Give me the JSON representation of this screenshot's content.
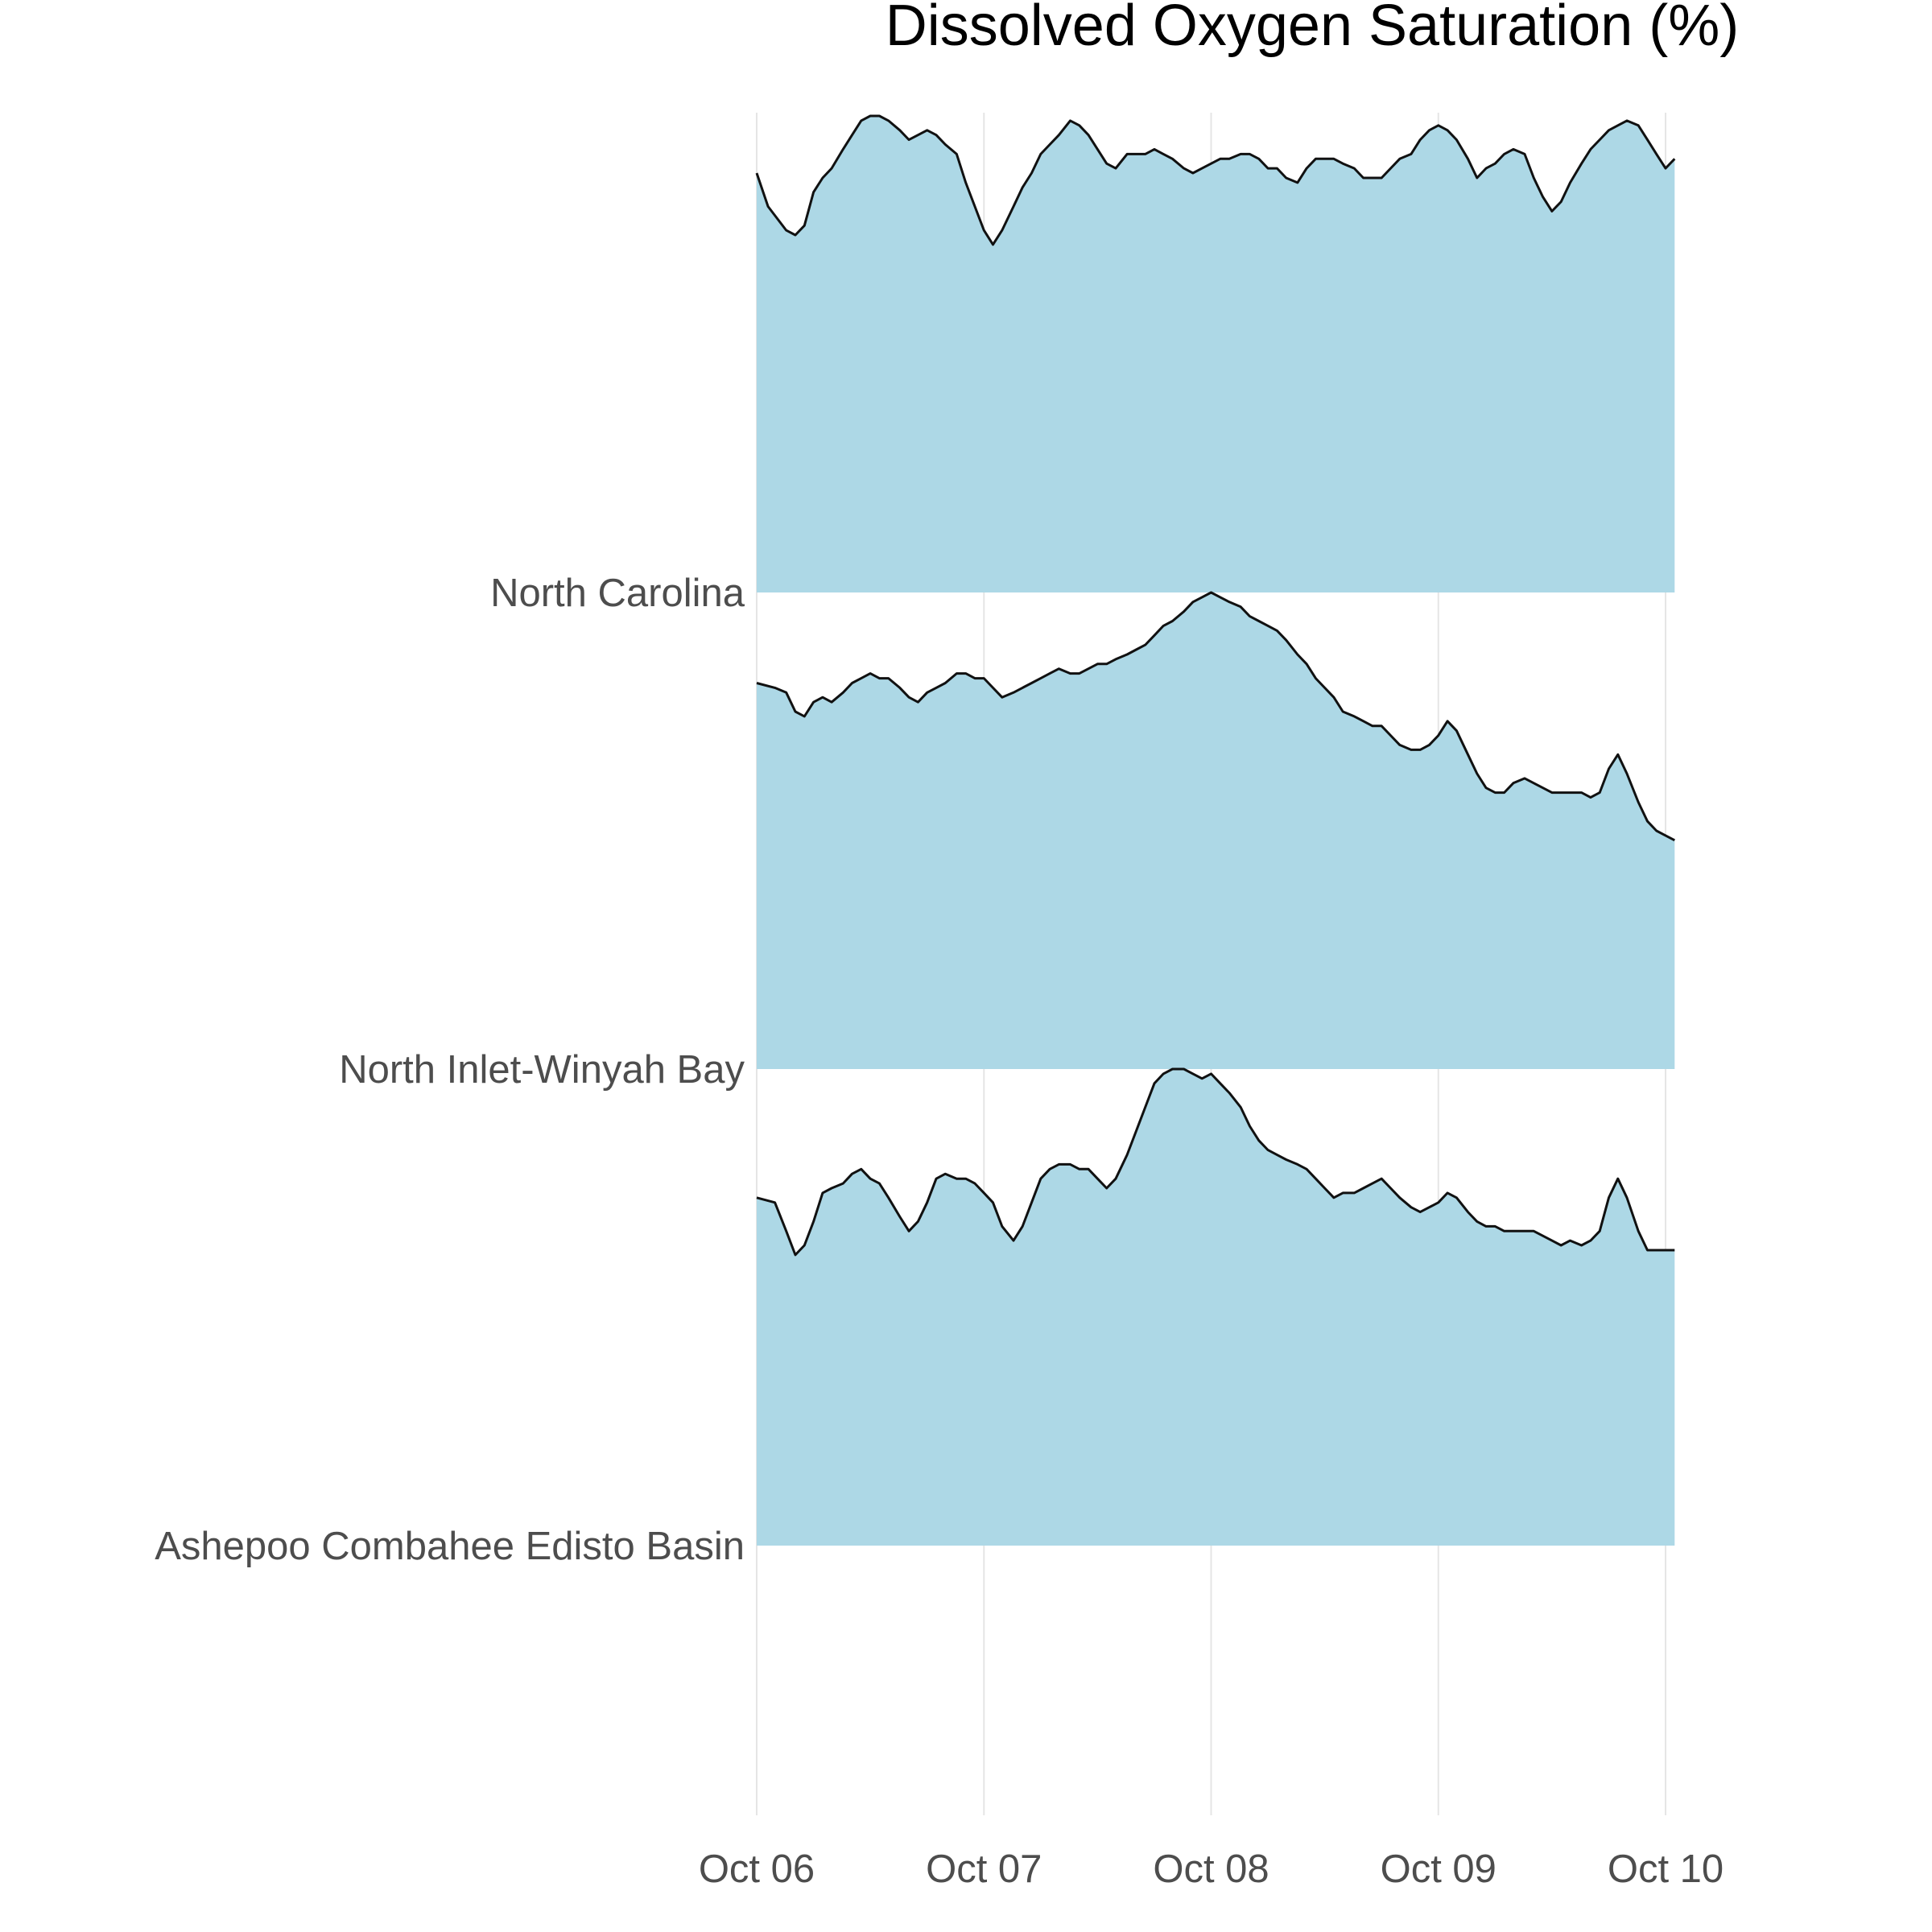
{
  "chart_data": {
    "type": "area",
    "subtype": "ridgeline",
    "title": "Dissolved Oxygen Saturation (%)",
    "xlabel": "",
    "ylabel": "",
    "x_ticks": [
      "Oct 06",
      "Oct 07",
      "Oct 08",
      "Oct 09",
      "Oct 10"
    ],
    "x_tick_days": [
      0,
      1,
      2,
      3,
      4
    ],
    "x_range_days": [
      0,
      4.96
    ],
    "grid": {
      "vertical": true,
      "horizontal": false
    },
    "legend": "none",
    "colors": {
      "fill": "#add8e6",
      "line": "#111111",
      "grid": "#e5e5e5",
      "text": "#4d4d4d"
    },
    "series": [
      {
        "name": "North Carolina",
        "values": [
          [
            0.0,
            0.88
          ],
          [
            0.05,
            0.81
          ],
          [
            0.13,
            0.76
          ],
          [
            0.17,
            0.75
          ],
          [
            0.21,
            0.77
          ],
          [
            0.25,
            0.84
          ],
          [
            0.29,
            0.87
          ],
          [
            0.33,
            0.89
          ],
          [
            0.38,
            0.93
          ],
          [
            0.42,
            0.96
          ],
          [
            0.46,
            0.99
          ],
          [
            0.5,
            1.0
          ],
          [
            0.54,
            1.0
          ],
          [
            0.58,
            0.99
          ],
          [
            0.63,
            0.97
          ],
          [
            0.67,
            0.95
          ],
          [
            0.71,
            0.96
          ],
          [
            0.75,
            0.97
          ],
          [
            0.79,
            0.96
          ],
          [
            0.83,
            0.94
          ],
          [
            0.88,
            0.92
          ],
          [
            0.92,
            0.86
          ],
          [
            0.96,
            0.81
          ],
          [
            1.0,
            0.76
          ],
          [
            1.04,
            0.73
          ],
          [
            1.08,
            0.76
          ],
          [
            1.13,
            0.81
          ],
          [
            1.17,
            0.85
          ],
          [
            1.21,
            0.88
          ],
          [
            1.25,
            0.92
          ],
          [
            1.29,
            0.94
          ],
          [
            1.33,
            0.96
          ],
          [
            1.38,
            0.99
          ],
          [
            1.42,
            0.98
          ],
          [
            1.46,
            0.96
          ],
          [
            1.5,
            0.93
          ],
          [
            1.54,
            0.9
          ],
          [
            1.58,
            0.89
          ],
          [
            1.63,
            0.92
          ],
          [
            1.67,
            0.92
          ],
          [
            1.71,
            0.92
          ],
          [
            1.75,
            0.93
          ],
          [
            1.79,
            0.92
          ],
          [
            1.83,
            0.91
          ],
          [
            1.88,
            0.89
          ],
          [
            1.92,
            0.88
          ],
          [
            1.96,
            0.89
          ],
          [
            2.0,
            0.9
          ],
          [
            2.04,
            0.91
          ],
          [
            2.08,
            0.91
          ],
          [
            2.13,
            0.92
          ],
          [
            2.17,
            0.92
          ],
          [
            2.21,
            0.91
          ],
          [
            2.25,
            0.89
          ],
          [
            2.29,
            0.89
          ],
          [
            2.33,
            0.87
          ],
          [
            2.38,
            0.86
          ],
          [
            2.42,
            0.89
          ],
          [
            2.46,
            0.91
          ],
          [
            2.5,
            0.91
          ],
          [
            2.54,
            0.91
          ],
          [
            2.58,
            0.9
          ],
          [
            2.63,
            0.89
          ],
          [
            2.67,
            0.87
          ],
          [
            2.71,
            0.87
          ],
          [
            2.75,
            0.87
          ],
          [
            2.79,
            0.89
          ],
          [
            2.83,
            0.91
          ],
          [
            2.88,
            0.92
          ],
          [
            2.92,
            0.95
          ],
          [
            2.96,
            0.97
          ],
          [
            3.0,
            0.98
          ],
          [
            3.04,
            0.97
          ],
          [
            3.08,
            0.95
          ],
          [
            3.13,
            0.91
          ],
          [
            3.17,
            0.87
          ],
          [
            3.21,
            0.89
          ],
          [
            3.25,
            0.9
          ],
          [
            3.29,
            0.92
          ],
          [
            3.33,
            0.93
          ],
          [
            3.38,
            0.92
          ],
          [
            3.42,
            0.87
          ],
          [
            3.46,
            0.83
          ],
          [
            3.5,
            0.8
          ],
          [
            3.54,
            0.82
          ],
          [
            3.58,
            0.86
          ],
          [
            3.63,
            0.9
          ],
          [
            3.67,
            0.93
          ],
          [
            3.71,
            0.95
          ],
          [
            3.75,
            0.97
          ],
          [
            3.79,
            0.98
          ],
          [
            3.83,
            0.99
          ],
          [
            3.88,
            0.98
          ],
          [
            3.92,
            0.95
          ],
          [
            3.96,
            0.92
          ],
          [
            4.0,
            0.89
          ],
          [
            4.04,
            0.91
          ]
        ]
      },
      {
        "name": "North Inlet-Winyah Bay",
        "values": [
          [
            0.0,
            0.81
          ],
          [
            0.08,
            0.8
          ],
          [
            0.13,
            0.79
          ],
          [
            0.17,
            0.75
          ],
          [
            0.21,
            0.74
          ],
          [
            0.25,
            0.77
          ],
          [
            0.29,
            0.78
          ],
          [
            0.33,
            0.77
          ],
          [
            0.38,
            0.79
          ],
          [
            0.42,
            0.81
          ],
          [
            0.46,
            0.82
          ],
          [
            0.5,
            0.83
          ],
          [
            0.54,
            0.82
          ],
          [
            0.58,
            0.82
          ],
          [
            0.63,
            0.8
          ],
          [
            0.67,
            0.78
          ],
          [
            0.71,
            0.77
          ],
          [
            0.75,
            0.79
          ],
          [
            0.79,
            0.8
          ],
          [
            0.83,
            0.81
          ],
          [
            0.88,
            0.83
          ],
          [
            0.92,
            0.83
          ],
          [
            0.96,
            0.82
          ],
          [
            1.0,
            0.82
          ],
          [
            1.04,
            0.8
          ],
          [
            1.08,
            0.78
          ],
          [
            1.13,
            0.79
          ],
          [
            1.17,
            0.8
          ],
          [
            1.21,
            0.81
          ],
          [
            1.25,
            0.82
          ],
          [
            1.29,
            0.83
          ],
          [
            1.33,
            0.84
          ],
          [
            1.38,
            0.83
          ],
          [
            1.42,
            0.83
          ],
          [
            1.46,
            0.84
          ],
          [
            1.5,
            0.85
          ],
          [
            1.54,
            0.85
          ],
          [
            1.58,
            0.86
          ],
          [
            1.63,
            0.87
          ],
          [
            1.67,
            0.88
          ],
          [
            1.71,
            0.89
          ],
          [
            1.75,
            0.91
          ],
          [
            1.79,
            0.93
          ],
          [
            1.83,
            0.94
          ],
          [
            1.88,
            0.96
          ],
          [
            1.92,
            0.98
          ],
          [
            1.96,
            0.99
          ],
          [
            2.0,
            1.0
          ],
          [
            2.04,
            0.99
          ],
          [
            2.08,
            0.98
          ],
          [
            2.13,
            0.97
          ],
          [
            2.17,
            0.95
          ],
          [
            2.21,
            0.94
          ],
          [
            2.25,
            0.93
          ],
          [
            2.29,
            0.92
          ],
          [
            2.33,
            0.9
          ],
          [
            2.38,
            0.87
          ],
          [
            2.42,
            0.85
          ],
          [
            2.46,
            0.82
          ],
          [
            2.5,
            0.8
          ],
          [
            2.54,
            0.78
          ],
          [
            2.58,
            0.75
          ],
          [
            2.63,
            0.74
          ],
          [
            2.67,
            0.73
          ],
          [
            2.71,
            0.72
          ],
          [
            2.75,
            0.72
          ],
          [
            2.79,
            0.7
          ],
          [
            2.83,
            0.68
          ],
          [
            2.88,
            0.67
          ],
          [
            2.92,
            0.67
          ],
          [
            2.96,
            0.68
          ],
          [
            3.0,
            0.7
          ],
          [
            3.04,
            0.73
          ],
          [
            3.08,
            0.71
          ],
          [
            3.13,
            0.66
          ],
          [
            3.17,
            0.62
          ],
          [
            3.21,
            0.59
          ],
          [
            3.25,
            0.58
          ],
          [
            3.29,
            0.58
          ],
          [
            3.33,
            0.6
          ],
          [
            3.38,
            0.61
          ],
          [
            3.42,
            0.6
          ],
          [
            3.46,
            0.59
          ],
          [
            3.5,
            0.58
          ],
          [
            3.54,
            0.58
          ],
          [
            3.58,
            0.58
          ],
          [
            3.63,
            0.58
          ],
          [
            3.67,
            0.57
          ],
          [
            3.71,
            0.58
          ],
          [
            3.75,
            0.63
          ],
          [
            3.79,
            0.66
          ],
          [
            3.83,
            0.62
          ],
          [
            3.88,
            0.56
          ],
          [
            3.92,
            0.52
          ],
          [
            3.96,
            0.5
          ],
          [
            4.0,
            0.49
          ],
          [
            4.04,
            0.48
          ]
        ]
      },
      {
        "name": "Ashepoo Combahee Edisto Basin",
        "values": [
          [
            0.0,
            0.73
          ],
          [
            0.08,
            0.72
          ],
          [
            0.13,
            0.66
          ],
          [
            0.17,
            0.61
          ],
          [
            0.21,
            0.63
          ],
          [
            0.25,
            0.68
          ],
          [
            0.29,
            0.74
          ],
          [
            0.33,
            0.75
          ],
          [
            0.38,
            0.76
          ],
          [
            0.42,
            0.78
          ],
          [
            0.46,
            0.79
          ],
          [
            0.5,
            0.77
          ],
          [
            0.54,
            0.76
          ],
          [
            0.58,
            0.73
          ],
          [
            0.63,
            0.69
          ],
          [
            0.67,
            0.66
          ],
          [
            0.71,
            0.68
          ],
          [
            0.75,
            0.72
          ],
          [
            0.79,
            0.77
          ],
          [
            0.83,
            0.78
          ],
          [
            0.88,
            0.77
          ],
          [
            0.92,
            0.77
          ],
          [
            0.96,
            0.76
          ],
          [
            1.0,
            0.74
          ],
          [
            1.04,
            0.72
          ],
          [
            1.08,
            0.67
          ],
          [
            1.13,
            0.64
          ],
          [
            1.17,
            0.67
          ],
          [
            1.21,
            0.72
          ],
          [
            1.25,
            0.77
          ],
          [
            1.29,
            0.79
          ],
          [
            1.33,
            0.8
          ],
          [
            1.38,
            0.8
          ],
          [
            1.42,
            0.79
          ],
          [
            1.46,
            0.79
          ],
          [
            1.5,
            0.77
          ],
          [
            1.54,
            0.75
          ],
          [
            1.58,
            0.77
          ],
          [
            1.63,
            0.82
          ],
          [
            1.67,
            0.87
          ],
          [
            1.71,
            0.92
          ],
          [
            1.75,
            0.97
          ],
          [
            1.79,
            0.99
          ],
          [
            1.83,
            1.0
          ],
          [
            1.88,
            1.0
          ],
          [
            1.92,
            0.99
          ],
          [
            1.96,
            0.98
          ],
          [
            2.0,
            0.99
          ],
          [
            2.04,
            0.97
          ],
          [
            2.08,
            0.95
          ],
          [
            2.13,
            0.92
          ],
          [
            2.17,
            0.88
          ],
          [
            2.21,
            0.85
          ],
          [
            2.25,
            0.83
          ],
          [
            2.29,
            0.82
          ],
          [
            2.33,
            0.81
          ],
          [
            2.38,
            0.8
          ],
          [
            2.42,
            0.79
          ],
          [
            2.46,
            0.77
          ],
          [
            2.5,
            0.75
          ],
          [
            2.54,
            0.73
          ],
          [
            2.58,
            0.74
          ],
          [
            2.63,
            0.74
          ],
          [
            2.67,
            0.75
          ],
          [
            2.71,
            0.76
          ],
          [
            2.75,
            0.77
          ],
          [
            2.79,
            0.75
          ],
          [
            2.83,
            0.73
          ],
          [
            2.88,
            0.71
          ],
          [
            2.92,
            0.7
          ],
          [
            2.96,
            0.71
          ],
          [
            3.0,
            0.72
          ],
          [
            3.04,
            0.74
          ],
          [
            3.08,
            0.73
          ],
          [
            3.13,
            0.7
          ],
          [
            3.17,
            0.68
          ],
          [
            3.21,
            0.67
          ],
          [
            3.25,
            0.67
          ],
          [
            3.29,
            0.66
          ],
          [
            3.33,
            0.66
          ],
          [
            3.38,
            0.66
          ],
          [
            3.42,
            0.66
          ],
          [
            3.46,
            0.65
          ],
          [
            3.5,
            0.64
          ],
          [
            3.54,
            0.63
          ],
          [
            3.58,
            0.64
          ],
          [
            3.63,
            0.63
          ],
          [
            3.67,
            0.64
          ],
          [
            3.71,
            0.66
          ],
          [
            3.75,
            0.73
          ],
          [
            3.79,
            0.77
          ],
          [
            3.83,
            0.73
          ],
          [
            3.88,
            0.66
          ],
          [
            3.92,
            0.62
          ],
          [
            3.96,
            0.62
          ],
          [
            4.0,
            0.62
          ],
          [
            4.04,
            0.62
          ]
        ]
      }
    ]
  }
}
